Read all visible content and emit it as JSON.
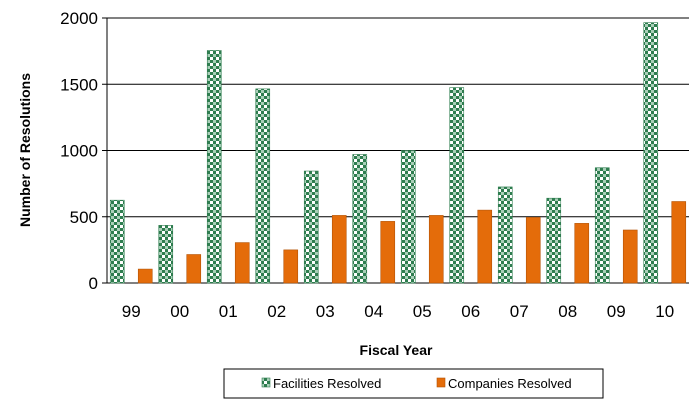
{
  "chart_data": {
    "type": "bar",
    "title": "",
    "xlabel": "Fiscal Year",
    "ylabel": "Number of Resolutions",
    "categories": [
      "99",
      "00",
      "01",
      "02",
      "03",
      "04",
      "05",
      "06",
      "07",
      "08",
      "09",
      "10"
    ],
    "series": [
      {
        "name": "Facilities Resolved",
        "values": [
          625,
          435,
          1755,
          1465,
          845,
          970,
          1000,
          1475,
          725,
          640,
          870,
          1965
        ],
        "color": "#2e7d4f",
        "pattern": "checkered-green-white"
      },
      {
        "name": "Companies Resolved",
        "values": [
          105,
          215,
          305,
          250,
          510,
          465,
          510,
          550,
          495,
          450,
          400,
          615
        ],
        "color": "#e46c0a"
      }
    ],
    "ylim": [
      0,
      2000
    ],
    "yticks": [
      0,
      500,
      1000,
      1500,
      2000
    ],
    "grid": true,
    "legend_position": "bottom"
  }
}
